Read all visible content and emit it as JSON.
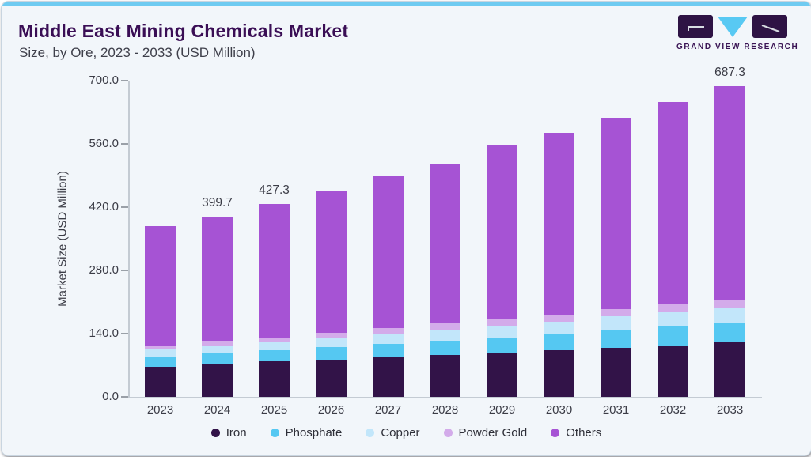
{
  "header": {
    "title": "Middle East Mining Chemicals Market",
    "subtitle": "Size, by Ore, 2023 - 2033 (USD Million)"
  },
  "logo": {
    "brand": "GRAND VIEW RESEARCH"
  },
  "colors": {
    "accent_bar": "#6fcbf1",
    "card_background": "#f2f6fa",
    "title": "#3a0e55",
    "axis_text": "#3b3c46"
  },
  "chart_data": {
    "type": "bar",
    "stacked": true,
    "title": "Middle East Mining Chemicals Market Size, by Ore, 2023 - 2033 (USD Million)",
    "categories": [
      "2023",
      "2024",
      "2025",
      "2026",
      "2027",
      "2028",
      "2029",
      "2030",
      "2031",
      "2032",
      "2033"
    ],
    "series": [
      {
        "name": "Iron",
        "color": "#321348",
        "values": [
          67,
          72,
          78,
          83,
          88,
          93,
          98,
          103,
          109,
          114,
          120
        ]
      },
      {
        "name": "Phosphate",
        "color": "#55c8f2",
        "values": [
          22,
          24,
          25,
          27,
          29,
          31,
          34,
          36,
          40,
          43,
          45
        ]
      },
      {
        "name": "Copper",
        "color": "#c2e6fa",
        "values": [
          16,
          18,
          18,
          19,
          22,
          24,
          26,
          27,
          29,
          31,
          32
        ]
      },
      {
        "name": "Powder Gold",
        "color": "#d3abea",
        "values": [
          9,
          10,
          11,
          12,
          13,
          14,
          15,
          16,
          16,
          17,
          18
        ]
      },
      {
        "name": "Others",
        "color": "#a653d4",
        "values": [
          264,
          275.7,
          295.3,
          315,
          337,
          352,
          384,
          403,
          423,
          447,
          472.3
        ]
      }
    ],
    "totals": [
      378,
      399.7,
      427.3,
      456,
      489,
      514,
      557,
      585,
      617,
      652,
      687.3
    ],
    "total_labels": {
      "2024": "399.7",
      "2025": "427.3",
      "2033": "687.3"
    },
    "ylabel": "Market Size (USD Million)",
    "ylim": [
      0,
      700
    ],
    "ytick_values": [
      700,
      560,
      420,
      280,
      140,
      0
    ],
    "ytick_labels": [
      "700.0",
      "560.0",
      "420.0",
      "280.0",
      "140.0",
      "0.0"
    ],
    "grid": false,
    "legend_position": "bottom"
  }
}
